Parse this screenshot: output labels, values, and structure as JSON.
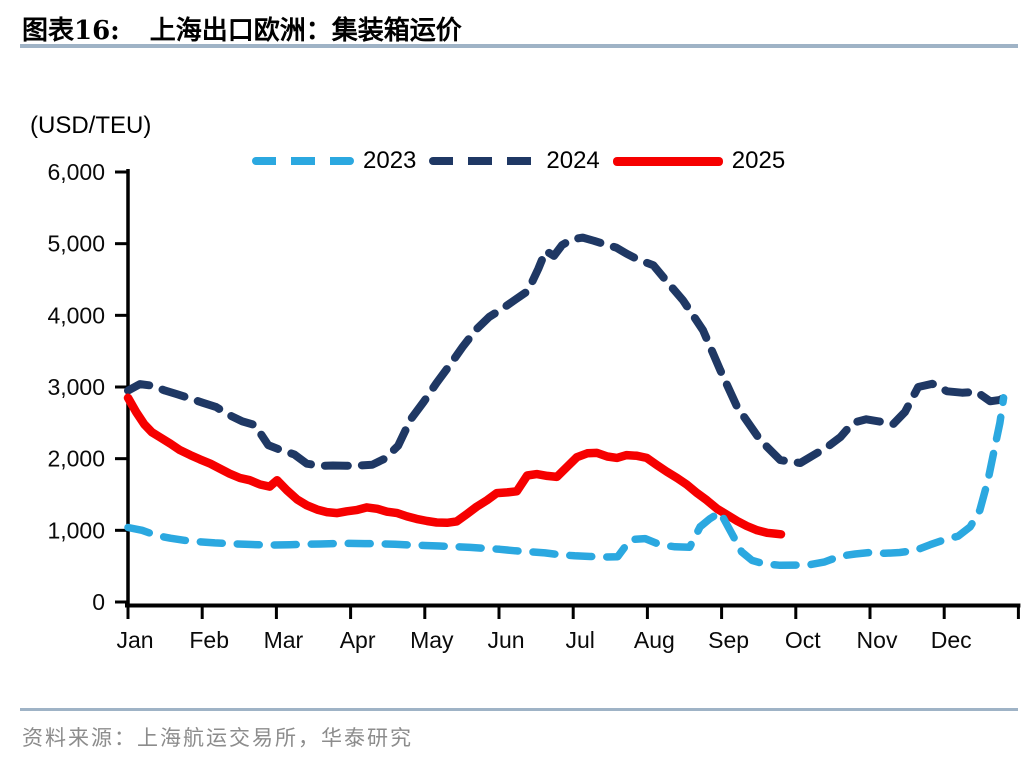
{
  "figure": {
    "label": "图表16:",
    "title": "上海出口欧洲：集装箱运价"
  },
  "source": "资料来源：上海航运交易所，华泰研究",
  "chart_data": {
    "type": "line",
    "title": "上海出口欧洲：集装箱运价",
    "xlabel": "",
    "ylabel": "(USD/TEU)",
    "xlim": [
      0,
      12
    ],
    "ylim": [
      0,
      6000
    ],
    "grid": false,
    "legend_position": "top",
    "ytick_labels": [
      "0",
      "1,000",
      "2,000",
      "3,000",
      "4,000",
      "5,000",
      "6,000"
    ],
    "xtick_labels": [
      "Jan",
      "Feb",
      "Mar",
      "Apr",
      "May",
      "Jun",
      "Jul",
      "Aug",
      "Sep",
      "Oct",
      "Nov",
      "Dec"
    ],
    "series": [
      {
        "name": "2023",
        "color": "#2BA8E0",
        "line_style": "dashed",
        "points": [
          [
            0,
            1040
          ],
          [
            0.19,
            1000
          ],
          [
            0.38,
            930
          ],
          [
            0.57,
            890
          ],
          [
            0.77,
            860
          ],
          [
            0.97,
            840
          ],
          [
            1.17,
            825
          ],
          [
            1.37,
            815
          ],
          [
            1.58,
            805
          ],
          [
            1.78,
            798
          ],
          [
            1.98,
            795
          ],
          [
            2.18,
            800
          ],
          [
            2.39,
            805
          ],
          [
            2.59,
            810
          ],
          [
            2.79,
            815
          ],
          [
            2.99,
            818
          ],
          [
            3.19,
            815
          ],
          [
            3.4,
            812
          ],
          [
            3.6,
            805
          ],
          [
            3.8,
            795
          ],
          [
            4,
            788
          ],
          [
            4.2,
            782
          ],
          [
            4.41,
            772
          ],
          [
            4.61,
            762
          ],
          [
            4.81,
            750
          ],
          [
            5.01,
            735
          ],
          [
            5.22,
            715
          ],
          [
            5.42,
            700
          ],
          [
            5.62,
            685
          ],
          [
            5.82,
            660
          ],
          [
            6.02,
            645
          ],
          [
            6.23,
            635
          ],
          [
            6.43,
            628
          ],
          [
            6.6,
            632
          ],
          [
            6.77,
            870
          ],
          [
            6.97,
            885
          ],
          [
            7.17,
            800
          ],
          [
            7.37,
            770
          ],
          [
            7.57,
            765
          ],
          [
            7.71,
            1050
          ],
          [
            7.84,
            1160
          ],
          [
            7.98,
            1255
          ],
          [
            8.14,
            950
          ],
          [
            8.27,
            700
          ],
          [
            8.41,
            580
          ],
          [
            8.58,
            530
          ],
          [
            8.79,
            512
          ],
          [
            8.99,
            515
          ],
          [
            9.19,
            520
          ],
          [
            9.39,
            560
          ],
          [
            9.6,
            640
          ],
          [
            9.8,
            670
          ],
          [
            10,
            690
          ],
          [
            10.2,
            680
          ],
          [
            10.4,
            690
          ],
          [
            10.61,
            720
          ],
          [
            10.81,
            800
          ],
          [
            11.01,
            870
          ],
          [
            11.19,
            920
          ],
          [
            11.35,
            1050
          ],
          [
            11.48,
            1280
          ],
          [
            11.59,
            1700
          ],
          [
            11.67,
            2100
          ],
          [
            11.75,
            2500
          ],
          [
            11.8,
            2850
          ]
        ]
      },
      {
        "name": "2024",
        "color": "#1F3864",
        "line_style": "dashed",
        "points": [
          [
            0,
            2950
          ],
          [
            0.16,
            3040
          ],
          [
            0.32,
            3020
          ],
          [
            0.5,
            2950
          ],
          [
            0.66,
            2900
          ],
          [
            0.84,
            2840
          ],
          [
            1.01,
            2780
          ],
          [
            1.19,
            2720
          ],
          [
            1.36,
            2610
          ],
          [
            1.54,
            2520
          ],
          [
            1.71,
            2470
          ],
          [
            1.89,
            2190
          ],
          [
            2.06,
            2120
          ],
          [
            2.24,
            2060
          ],
          [
            2.41,
            1930
          ],
          [
            2.59,
            1900
          ],
          [
            2.76,
            1905
          ],
          [
            2.94,
            1900
          ],
          [
            3.11,
            1905
          ],
          [
            3.29,
            1915
          ],
          [
            3.46,
            2000
          ],
          [
            3.64,
            2180
          ],
          [
            3.81,
            2550
          ],
          [
            3.99,
            2800
          ],
          [
            4.16,
            3060
          ],
          [
            4.34,
            3310
          ],
          [
            4.51,
            3560
          ],
          [
            4.69,
            3800
          ],
          [
            4.87,
            3980
          ],
          [
            5.04,
            4090
          ],
          [
            5.22,
            4220
          ],
          [
            5.39,
            4340
          ],
          [
            5.53,
            4650
          ],
          [
            5.63,
            4900
          ],
          [
            5.74,
            4830
          ],
          [
            5.85,
            4980
          ],
          [
            5.98,
            5060
          ],
          [
            6.13,
            5085
          ],
          [
            6.28,
            5040
          ],
          [
            6.43,
            4990
          ],
          [
            6.58,
            4945
          ],
          [
            6.72,
            4860
          ],
          [
            6.87,
            4780
          ],
          [
            7.08,
            4700
          ],
          [
            7.28,
            4450
          ],
          [
            7.48,
            4210
          ],
          [
            7.75,
            3790
          ],
          [
            7.98,
            3240
          ],
          [
            8.21,
            2720
          ],
          [
            8.52,
            2260
          ],
          [
            8.79,
            1980
          ],
          [
            9.06,
            1940
          ],
          [
            9.24,
            2050
          ],
          [
            9.42,
            2160
          ],
          [
            9.6,
            2300
          ],
          [
            9.77,
            2500
          ],
          [
            9.95,
            2550
          ],
          [
            10.12,
            2520
          ],
          [
            10.31,
            2480
          ],
          [
            10.47,
            2650
          ],
          [
            10.65,
            3000
          ],
          [
            10.84,
            3045
          ],
          [
            11.04,
            2940
          ],
          [
            11.24,
            2920
          ],
          [
            11.44,
            2930
          ],
          [
            11.62,
            2800
          ],
          [
            11.75,
            2820
          ],
          [
            11.83,
            2860
          ]
        ]
      },
      {
        "name": "2025",
        "color": "#F60000",
        "line_style": "solid",
        "points": [
          [
            0,
            2850
          ],
          [
            0.11,
            2650
          ],
          [
            0.22,
            2480
          ],
          [
            0.32,
            2370
          ],
          [
            0.43,
            2300
          ],
          [
            0.57,
            2210
          ],
          [
            0.7,
            2120
          ],
          [
            0.84,
            2050
          ],
          [
            0.97,
            1990
          ],
          [
            1.11,
            1930
          ],
          [
            1.24,
            1860
          ],
          [
            1.37,
            1790
          ],
          [
            1.51,
            1730
          ],
          [
            1.64,
            1700
          ],
          [
            1.78,
            1640
          ],
          [
            1.91,
            1610
          ],
          [
            2.01,
            1700
          ],
          [
            2.14,
            1560
          ],
          [
            2.28,
            1430
          ],
          [
            2.41,
            1350
          ],
          [
            2.55,
            1290
          ],
          [
            2.68,
            1255
          ],
          [
            2.82,
            1240
          ],
          [
            2.95,
            1265
          ],
          [
            3.09,
            1285
          ],
          [
            3.22,
            1320
          ],
          [
            3.36,
            1300
          ],
          [
            3.49,
            1260
          ],
          [
            3.63,
            1240
          ],
          [
            3.76,
            1195
          ],
          [
            3.89,
            1160
          ],
          [
            4.03,
            1130
          ],
          [
            4.16,
            1110
          ],
          [
            4.3,
            1105
          ],
          [
            4.43,
            1125
          ],
          [
            4.57,
            1230
          ],
          [
            4.7,
            1330
          ],
          [
            4.84,
            1420
          ],
          [
            4.97,
            1520
          ],
          [
            5.11,
            1530
          ],
          [
            5.24,
            1545
          ],
          [
            5.38,
            1765
          ],
          [
            5.51,
            1785
          ],
          [
            5.65,
            1760
          ],
          [
            5.78,
            1745
          ],
          [
            5.92,
            1890
          ],
          [
            6.05,
            2020
          ],
          [
            6.19,
            2075
          ],
          [
            6.32,
            2080
          ],
          [
            6.46,
            2030
          ],
          [
            6.59,
            2010
          ],
          [
            6.72,
            2050
          ],
          [
            6.86,
            2040
          ],
          [
            6.99,
            2010
          ],
          [
            7.13,
            1910
          ],
          [
            7.26,
            1820
          ],
          [
            7.4,
            1730
          ],
          [
            7.53,
            1640
          ],
          [
            7.67,
            1520
          ],
          [
            7.8,
            1420
          ],
          [
            7.94,
            1300
          ],
          [
            8.07,
            1220
          ],
          [
            8.21,
            1130
          ],
          [
            8.34,
            1060
          ],
          [
            8.48,
            1000
          ],
          [
            8.61,
            965
          ],
          [
            8.72,
            955
          ],
          [
            8.8,
            945
          ]
        ]
      }
    ]
  }
}
